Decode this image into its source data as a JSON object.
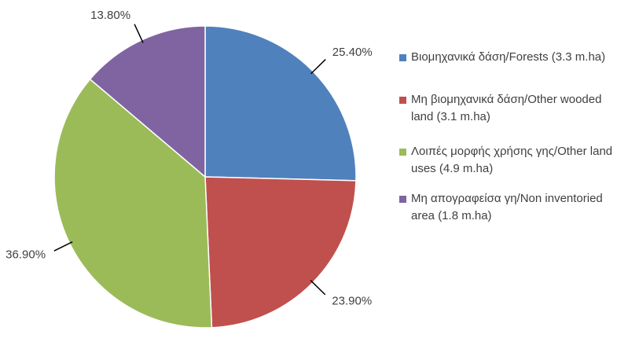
{
  "chart_data": {
    "type": "pie",
    "categories": [
      "Βιομηχανικά δάση/Forests (3.3 m.ha)",
      "Μη βιομηχανικά δάση/Other wooded land (3.1 m.ha)",
      "Λοιπές μορφής χρήσης γης/Other land uses (4.9 m.ha)",
      "Μη απογραφείσα γη/Non inventoried area (1.8 m.ha)"
    ],
    "values": [
      25.4,
      23.9,
      36.9,
      13.8
    ],
    "value_labels": [
      "25.40%",
      "23.90%",
      "36.90%",
      "13.80%"
    ],
    "colors": [
      "#4f81bd",
      "#c0504d",
      "#9bbb59",
      "#8064a2"
    ],
    "legend": "right"
  }
}
